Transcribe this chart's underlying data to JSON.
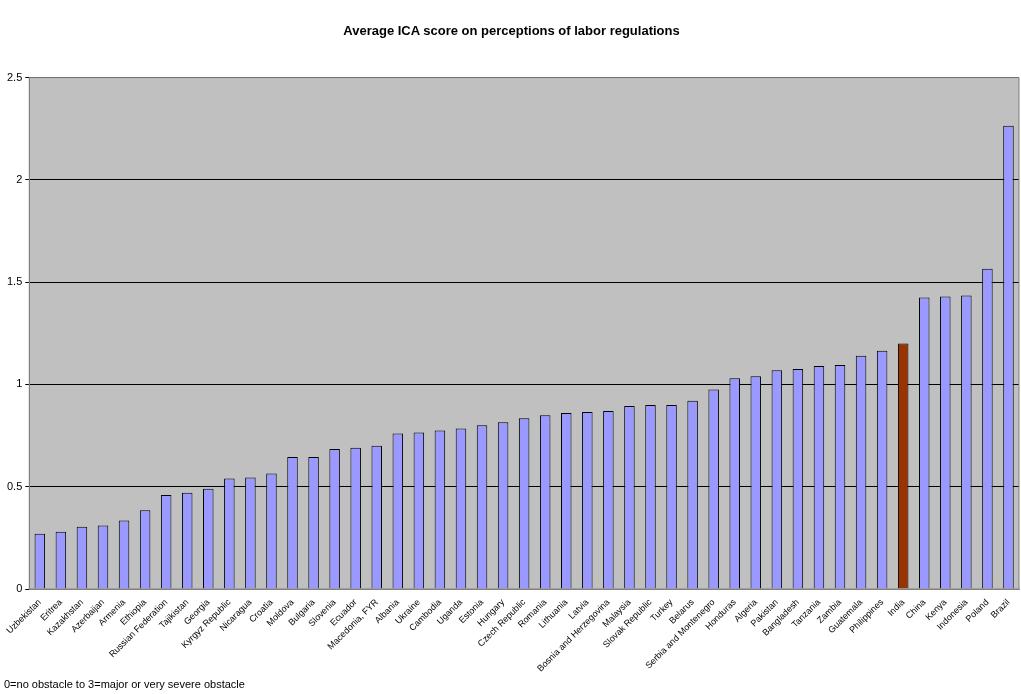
{
  "chart_data": {
    "type": "bar",
    "title": "Average ICA score on perceptions of labor regulations",
    "categories": [
      "Uzbekistan",
      "Eritrea",
      "Kazakhstan",
      "Azerbaijan",
      "Armenia",
      "Ethiopia",
      "Russian Federation",
      "Tajikistan",
      "Georgia",
      "Kyrgyz Republic",
      "Nicaragua",
      "Croatia",
      "Moldova",
      "Bulgaria",
      "Slovenia",
      "Ecuador",
      "Macedonia, FYR",
      "Albania",
      "Ukraine",
      "Cambodia",
      "Uganda",
      "Estonia",
      "Hungary",
      "Czech Republic",
      "Romania",
      "Lithuania",
      "Latvia",
      "Bosnia and Herzegovina",
      "Malaysia",
      "Slovak Republic",
      "Turkey",
      "Belarus",
      "Serbia and Montenegro",
      "Honduras",
      "Algeria",
      "Pakistan",
      "Bangladesh",
      "Tanzania",
      "Zambia",
      "Guatemala",
      "Philippines",
      "India",
      "China",
      "Kenya",
      "Indonesia",
      "Poland",
      "Brazil"
    ],
    "values": [
      0.27,
      0.28,
      0.305,
      0.31,
      0.335,
      0.385,
      0.46,
      0.47,
      0.49,
      0.54,
      0.545,
      0.565,
      0.645,
      0.645,
      0.685,
      0.69,
      0.7,
      0.76,
      0.765,
      0.775,
      0.785,
      0.8,
      0.815,
      0.835,
      0.85,
      0.86,
      0.865,
      0.87,
      0.895,
      0.9,
      0.9,
      0.92,
      0.975,
      1.03,
      1.04,
      1.07,
      1.075,
      1.09,
      1.095,
      1.14,
      1.165,
      1.2,
      1.425,
      1.43,
      1.435,
      1.565,
      2.265
    ],
    "colors": [
      "#9999ff",
      "#9999ff",
      "#9999ff",
      "#9999ff",
      "#9999ff",
      "#9999ff",
      "#9999ff",
      "#9999ff",
      "#9999ff",
      "#9999ff",
      "#9999ff",
      "#9999ff",
      "#9999ff",
      "#9999ff",
      "#9999ff",
      "#9999ff",
      "#9999ff",
      "#9999ff",
      "#9999ff",
      "#9999ff",
      "#9999ff",
      "#9999ff",
      "#9999ff",
      "#9999ff",
      "#9999ff",
      "#9999ff",
      "#9999ff",
      "#9999ff",
      "#9999ff",
      "#9999ff",
      "#9999ff",
      "#9999ff",
      "#9999ff",
      "#9999ff",
      "#9999ff",
      "#9999ff",
      "#9999ff",
      "#9999ff",
      "#9999ff",
      "#9999ff",
      "#9999ff",
      "#993300",
      "#9999ff",
      "#9999ff",
      "#9999ff",
      "#9999ff",
      "#9999ff"
    ],
    "ylim": [
      0,
      2.5
    ],
    "yticks": [
      0,
      0.5,
      1,
      1.5,
      2,
      2.5
    ],
    "grid": "y",
    "annotations": [
      "0=no obstacle to 3=major or very severe obstacle"
    ]
  }
}
